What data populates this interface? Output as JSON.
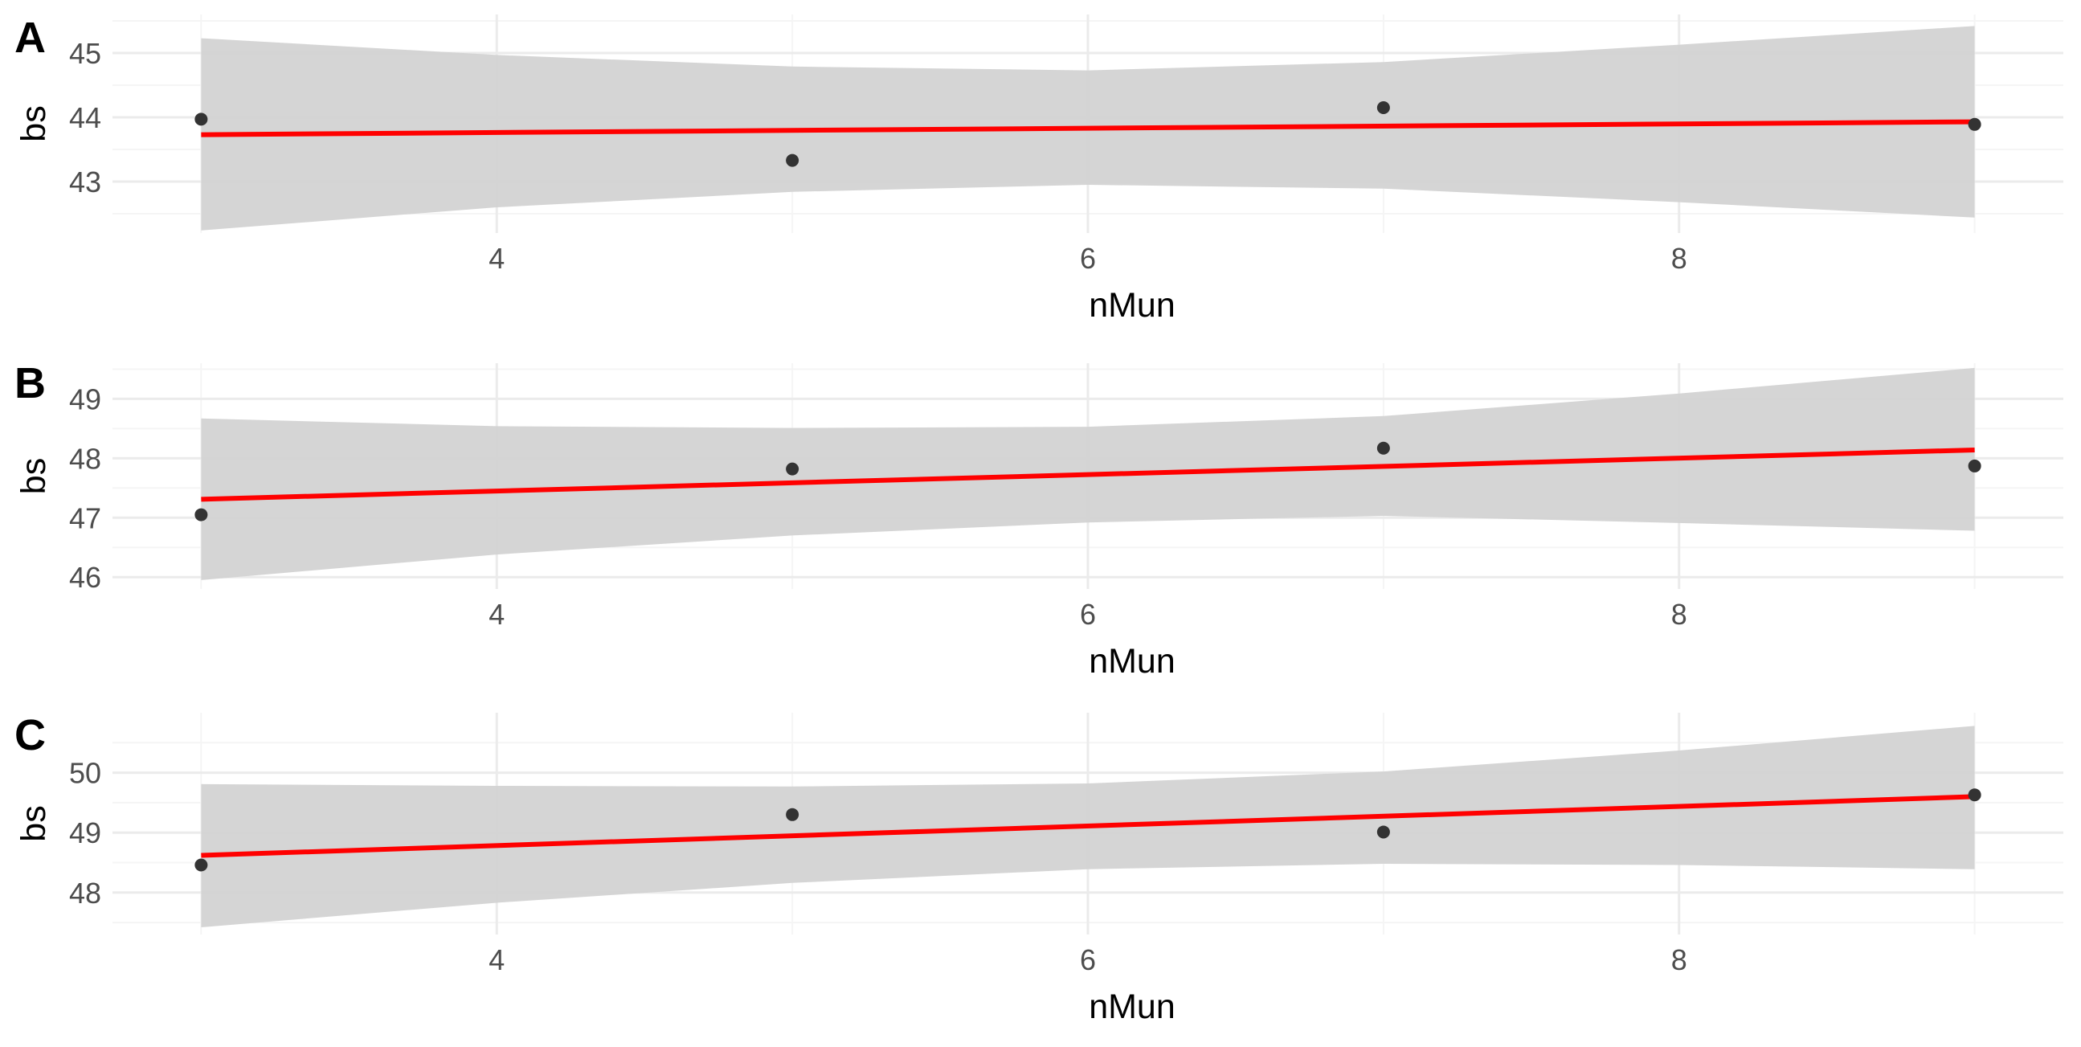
{
  "colors": {
    "background": "#ffffff",
    "grid_major": "#ebebeb",
    "grid_minor": "#f5f5f5",
    "ribbon": "#d3d3d3",
    "fit_line": "#ff0000",
    "points": "#333333",
    "tick_text": "#4d4d4d",
    "title_text": "#000000"
  },
  "chart_data": [
    {
      "panel": "A",
      "type": "scatter",
      "xlabel": "nMun",
      "ylabel": "bs",
      "xlim": [
        2.7,
        9.3
      ],
      "ylim": [
        42.2,
        45.6
      ],
      "x_ticks": [
        4,
        6,
        8
      ],
      "y_ticks": [
        43,
        44,
        45
      ],
      "grid": true,
      "legend": "none",
      "points": [
        {
          "x": 3,
          "y": 43.97
        },
        {
          "x": 5,
          "y": 43.33
        },
        {
          "x": 7,
          "y": 44.15
        },
        {
          "x": 9,
          "y": 43.89
        }
      ],
      "fit": {
        "x": [
          3,
          9
        ],
        "y": [
          43.73,
          43.93
        ]
      },
      "ribbon": {
        "x": [
          3,
          4,
          5,
          6,
          7,
          8,
          9
        ],
        "lower": [
          42.24,
          42.6,
          42.84,
          42.95,
          42.89,
          42.68,
          42.44
        ],
        "upper": [
          45.23,
          44.97,
          44.79,
          44.73,
          44.86,
          45.13,
          45.42
        ]
      }
    },
    {
      "panel": "B",
      "type": "scatter",
      "xlabel": "nMun",
      "ylabel": "bs",
      "xlim": [
        2.7,
        9.3
      ],
      "ylim": [
        45.8,
        49.6
      ],
      "x_ticks": [
        4,
        6,
        8
      ],
      "y_ticks": [
        46,
        47,
        48,
        49
      ],
      "grid": true,
      "legend": "none",
      "points": [
        {
          "x": 3,
          "y": 47.05
        },
        {
          "x": 5,
          "y": 47.82
        },
        {
          "x": 7,
          "y": 48.17
        },
        {
          "x": 9,
          "y": 47.87
        }
      ],
      "fit": {
        "x": [
          3,
          9
        ],
        "y": [
          47.31,
          48.14
        ]
      },
      "ribbon": {
        "x": [
          3,
          4,
          5,
          6,
          7,
          8,
          9
        ],
        "lower": [
          45.95,
          46.38,
          46.7,
          46.92,
          47.03,
          46.91,
          46.78
        ],
        "upper": [
          48.67,
          48.54,
          48.51,
          48.53,
          48.71,
          49.09,
          49.52
        ]
      }
    },
    {
      "panel": "C",
      "type": "scatter",
      "xlabel": "nMun",
      "ylabel": "bs",
      "xlim": [
        2.7,
        9.3
      ],
      "ylim": [
        47.3,
        51.0
      ],
      "x_ticks": [
        4,
        6,
        8
      ],
      "y_ticks": [
        48,
        49,
        50
      ],
      "grid": true,
      "legend": "none",
      "points": [
        {
          "x": 3,
          "y": 48.46
        },
        {
          "x": 5,
          "y": 49.3
        },
        {
          "x": 7,
          "y": 49.01
        },
        {
          "x": 9,
          "y": 49.63
        }
      ],
      "fit": {
        "x": [
          3,
          9
        ],
        "y": [
          48.62,
          49.6
        ]
      },
      "ribbon": {
        "x": [
          3,
          4,
          5,
          6,
          7,
          8,
          9
        ],
        "lower": [
          47.42,
          47.83,
          48.16,
          48.39,
          48.48,
          48.46,
          48.39
        ],
        "upper": [
          49.81,
          49.78,
          49.77,
          49.82,
          50.02,
          50.37,
          50.78
        ]
      }
    }
  ]
}
